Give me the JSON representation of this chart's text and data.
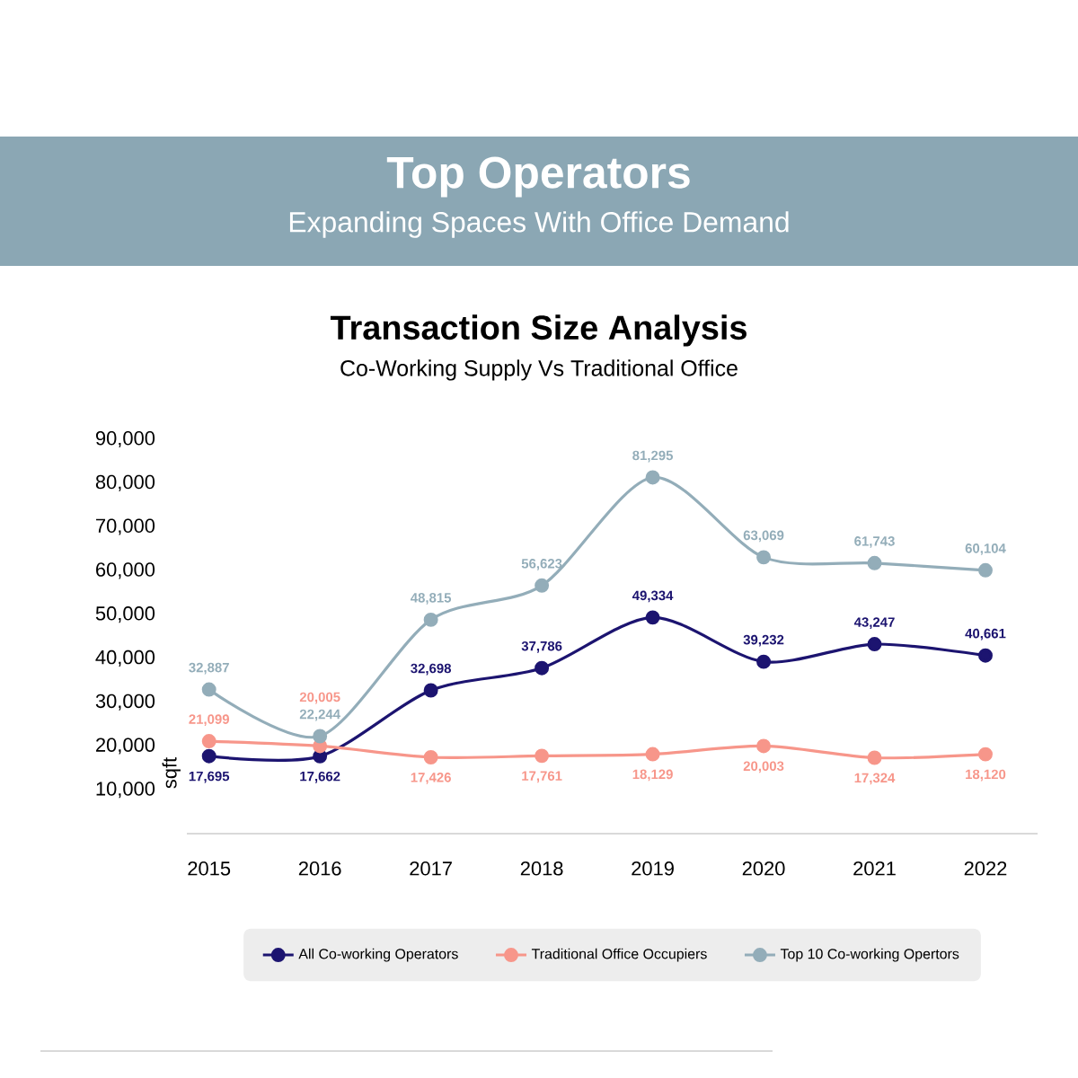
{
  "chart_data": {
    "type": "line",
    "title": "Transaction Size Analysis",
    "subtitle": "Co-Working Supply Vs Traditional Office",
    "ylabel": "sqft",
    "annotations": [
      "Top Operators",
      "Expanding Spaces With Office Demand"
    ],
    "categories": [
      "2015",
      "2016",
      "2017",
      "2018",
      "2019",
      "2020",
      "2021",
      "2022"
    ],
    "series": [
      {
        "name": "All Co-working Operators",
        "color": "#1c1470",
        "values": [
          17695,
          17662,
          32698,
          37786,
          49334,
          39232,
          43247,
          40661
        ],
        "value_labels": [
          "17,695",
          "17,662",
          "32,698",
          "37,786",
          "49,334",
          "39,232",
          "43,247",
          "40,661"
        ]
      },
      {
        "name": "Traditional Office Occupiers",
        "color": "#f7968a",
        "values": [
          21099,
          20005,
          17426,
          17761,
          18129,
          20003,
          17324,
          18120
        ],
        "value_labels": [
          "21,099",
          "20,005",
          "17,426",
          "17,761",
          "18,129",
          "20,003",
          "17,324",
          "18,120"
        ]
      },
      {
        "name": "Top 10 Co-working Opertors",
        "color": "#93adb9",
        "values": [
          32887,
          22244,
          48815,
          56623,
          81295,
          63069,
          61743,
          60104
        ],
        "value_labels": [
          "32,887",
          "22,244",
          "48,815",
          "56,623",
          "81,295",
          "63,069",
          "61,743",
          "60,104"
        ]
      }
    ],
    "ylim": [
      0,
      90000
    ],
    "yticks": [
      {
        "value": 10000,
        "label": "10,000"
      },
      {
        "value": 20000,
        "label": "20,000"
      },
      {
        "value": 30000,
        "label": "30,000"
      },
      {
        "value": 40000,
        "label": "40,000"
      },
      {
        "value": 50000,
        "label": "50,000"
      },
      {
        "value": 60000,
        "label": "60,000"
      },
      {
        "value": 70000,
        "label": "70,000"
      },
      {
        "value": 80000,
        "label": "80,000"
      },
      {
        "value": 90000,
        "label": "90,000"
      }
    ],
    "legend": "bottom",
    "marker": "circle",
    "line_style": "solid"
  }
}
